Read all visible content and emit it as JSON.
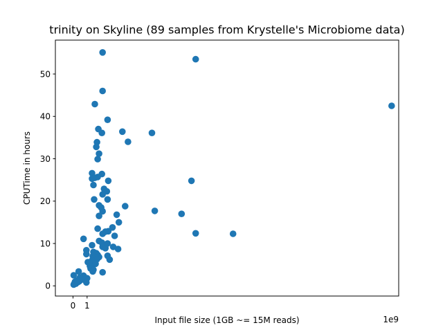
{
  "chart_data": {
    "type": "scatter",
    "title": "trinity on Skyline (89 samples from Krystelle's Microbiome data)",
    "xlabel": "Input file size (1GB ~= 15M reads)",
    "ylabel": "CPUTime in hours",
    "x_offset_text": "1e9",
    "x_ticks": [
      {
        "value": 0,
        "label": "0"
      },
      {
        "value": 1,
        "label": "1"
      }
    ],
    "y_ticks": [
      0,
      10,
      20,
      30,
      40,
      50
    ],
    "xlim": [
      -1.25,
      23.1
    ],
    "ylim": [
      -2.4,
      58.0
    ],
    "grid": false,
    "legend": "none",
    "color": "#1f77b4",
    "points": [
      {
        "x": 2.1,
        "y": 55.1
      },
      {
        "x": 8.7,
        "y": 53.5
      },
      {
        "x": 22.6,
        "y": 42.5
      },
      {
        "x": 2.1,
        "y": 46.0
      },
      {
        "x": 1.55,
        "y": 42.9
      },
      {
        "x": 2.45,
        "y": 39.2
      },
      {
        "x": 1.8,
        "y": 37.0
      },
      {
        "x": 2.05,
        "y": 36.1
      },
      {
        "x": 3.5,
        "y": 36.4
      },
      {
        "x": 5.6,
        "y": 36.1
      },
      {
        "x": 3.9,
        "y": 34.0
      },
      {
        "x": 1.7,
        "y": 33.9
      },
      {
        "x": 1.65,
        "y": 32.8
      },
      {
        "x": 1.85,
        "y": 31.2
      },
      {
        "x": 1.75,
        "y": 29.9
      },
      {
        "x": 1.35,
        "y": 26.6
      },
      {
        "x": 2.05,
        "y": 26.4
      },
      {
        "x": 1.35,
        "y": 25.3
      },
      {
        "x": 1.75,
        "y": 25.7
      },
      {
        "x": 1.55,
        "y": 25.5
      },
      {
        "x": 2.5,
        "y": 24.8
      },
      {
        "x": 8.4,
        "y": 24.8
      },
      {
        "x": 1.45,
        "y": 23.8
      },
      {
        "x": 2.2,
        "y": 22.9
      },
      {
        "x": 2.4,
        "y": 22.3
      },
      {
        "x": 2.1,
        "y": 21.6
      },
      {
        "x": 1.5,
        "y": 20.4
      },
      {
        "x": 2.45,
        "y": 20.4
      },
      {
        "x": 1.85,
        "y": 19.0
      },
      {
        "x": 2.0,
        "y": 18.5
      },
      {
        "x": 2.1,
        "y": 17.6
      },
      {
        "x": 3.7,
        "y": 18.8
      },
      {
        "x": 5.8,
        "y": 17.7
      },
      {
        "x": 7.7,
        "y": 17.0
      },
      {
        "x": 1.85,
        "y": 16.5
      },
      {
        "x": 3.1,
        "y": 16.8
      },
      {
        "x": 3.25,
        "y": 15.0
      },
      {
        "x": 1.75,
        "y": 13.5
      },
      {
        "x": 2.8,
        "y": 13.8
      },
      {
        "x": 2.5,
        "y": 12.9
      },
      {
        "x": 2.3,
        "y": 12.8
      },
      {
        "x": 2.1,
        "y": 12.3
      },
      {
        "x": 8.7,
        "y": 12.4
      },
      {
        "x": 11.35,
        "y": 12.3
      },
      {
        "x": 2.95,
        "y": 11.8
      },
      {
        "x": 0.75,
        "y": 11.1
      },
      {
        "x": 1.85,
        "y": 10.6
      },
      {
        "x": 2.05,
        "y": 10.2
      },
      {
        "x": 2.45,
        "y": 10.0
      },
      {
        "x": 1.35,
        "y": 9.6
      },
      {
        "x": 2.1,
        "y": 9.2
      },
      {
        "x": 2.85,
        "y": 9.2
      },
      {
        "x": 2.3,
        "y": 8.9
      },
      {
        "x": 3.2,
        "y": 8.7
      },
      {
        "x": 0.95,
        "y": 8.4
      },
      {
        "x": 1.45,
        "y": 8.0
      },
      {
        "x": 1.65,
        "y": 7.7
      },
      {
        "x": 0.95,
        "y": 7.5
      },
      {
        "x": 1.75,
        "y": 7.3
      },
      {
        "x": 2.45,
        "y": 7.1
      },
      {
        "x": 1.4,
        "y": 7.0
      },
      {
        "x": 1.85,
        "y": 6.8
      },
      {
        "x": 1.55,
        "y": 6.6
      },
      {
        "x": 1.7,
        "y": 6.3
      },
      {
        "x": 2.6,
        "y": 6.2
      },
      {
        "x": 1.35,
        "y": 6.0
      },
      {
        "x": 1.05,
        "y": 5.6
      },
      {
        "x": 1.2,
        "y": 5.3
      },
      {
        "x": 1.6,
        "y": 5.2
      },
      {
        "x": 1.2,
        "y": 4.7
      },
      {
        "x": 1.3,
        "y": 4.4
      },
      {
        "x": 1.25,
        "y": 4.1
      },
      {
        "x": 1.45,
        "y": 3.8
      },
      {
        "x": 1.4,
        "y": 3.4
      },
      {
        "x": 0.4,
        "y": 3.4
      },
      {
        "x": 2.1,
        "y": 3.2
      },
      {
        "x": 0.05,
        "y": 2.5
      },
      {
        "x": 0.75,
        "y": 2.4
      },
      {
        "x": 0.5,
        "y": 2.0
      },
      {
        "x": 1.0,
        "y": 1.8
      },
      {
        "x": 0.65,
        "y": 1.5
      },
      {
        "x": 0.3,
        "y": 1.3
      },
      {
        "x": 0.45,
        "y": 1.1
      },
      {
        "x": 0.15,
        "y": 1.0
      },
      {
        "x": 0.95,
        "y": 0.8
      },
      {
        "x": 0.1,
        "y": 0.6
      },
      {
        "x": 0.2,
        "y": 0.5
      },
      {
        "x": 0.05,
        "y": 0.3
      },
      {
        "x": 0.35,
        "y": 0.9
      }
    ]
  }
}
